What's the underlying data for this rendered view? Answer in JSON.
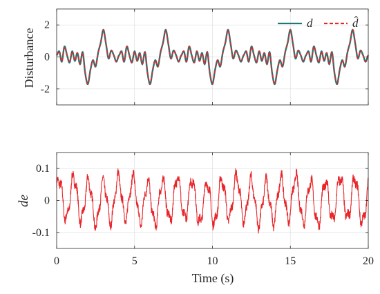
{
  "chart_data": [
    {
      "type": "line",
      "ylabel": "Disturbance",
      "xlabel": "",
      "xlim": [
        0,
        20
      ],
      "ylim": [
        -3,
        3
      ],
      "xticks": [
        0,
        5,
        10,
        15,
        20
      ],
      "yticks": [
        -2,
        0,
        2
      ],
      "ytick_labels": [
        "-2",
        "0",
        "2"
      ],
      "grid": true,
      "legend_position": "top-right",
      "series": [
        {
          "name": "d",
          "color": "#1b7a78",
          "style": "solid",
          "description": "periodic disturbance, period about 4 s, peaks about 1.7 and troughs about -1.7",
          "x": [
            0,
            0.17,
            0.33,
            0.5,
            0.67,
            0.83,
            1,
            1.17,
            1.33,
            1.5,
            1.67,
            1.83,
            2,
            2.17,
            2.33,
            2.5,
            2.67,
            2.83,
            3,
            3.17,
            3.33,
            3.5,
            3.67,
            3.83,
            4
          ],
          "values": [
            0.1,
            0.35,
            -0.3,
            0.65,
            0.1,
            -0.35,
            0.35,
            -0.25,
            0.25,
            -0.45,
            0.3,
            -1.0,
            -1.7,
            -0.8,
            -0.2,
            -0.6,
            0.3,
            0.9,
            1.7,
            0.8,
            -0.1,
            0.4,
            0.1,
            -0.3,
            0.1
          ]
        },
        {
          "name": "d̂",
          "color": "#e8262a",
          "style": "dashed",
          "description": "estimate of d, overlaps d"
        }
      ]
    },
    {
      "type": "line",
      "ylabel": "de",
      "xlabel": "Time (s)",
      "xlim": [
        0,
        20
      ],
      "ylim": [
        -0.15,
        0.15
      ],
      "xticks": [
        0,
        5,
        10,
        15,
        20
      ],
      "xtick_labels": [
        "0",
        "5",
        "10",
        "15",
        "20"
      ],
      "yticks": [
        -0.1,
        0,
        0.1
      ],
      "ytick_labels": [
        "-0.1",
        "0",
        "0.1"
      ],
      "grid": true,
      "series": [
        {
          "color": "#e8262a",
          "style": "solid",
          "description": "noisy oscillation, roughly 5-6 cycles per 5 s, amplitude about 0.08",
          "amplitude": 0.08,
          "approx_period": 0.95
        }
      ]
    }
  ]
}
